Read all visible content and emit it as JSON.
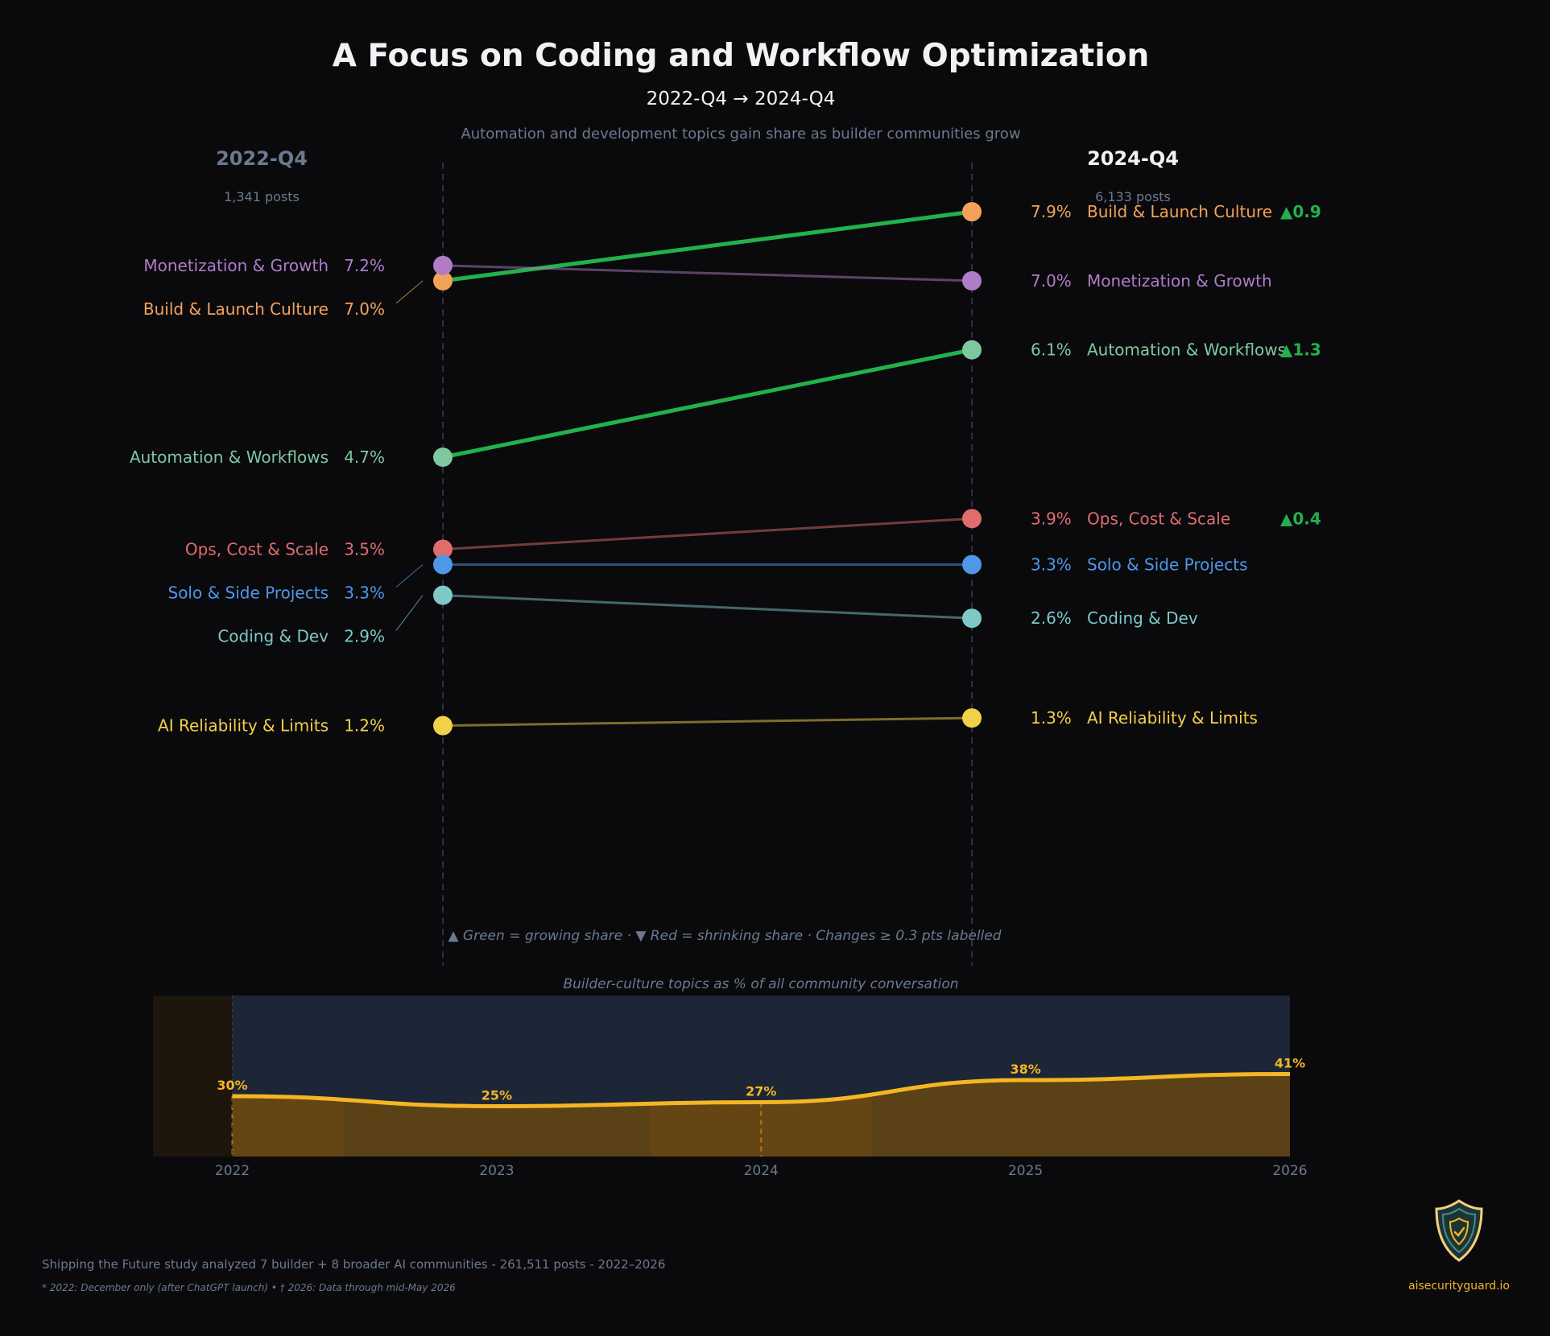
{
  "chart_data": [
    {
      "type": "slope",
      "title": "A Focus on Coding and Workflow Optimization",
      "subtitle": "2022-Q4  →  2024-Q4",
      "description": "Automation and development topics gain share as builder communities grow",
      "periods": [
        {
          "label": "2022-Q4",
          "posts": "1,341 posts"
        },
        {
          "label": "2024-Q4",
          "posts": "6,133 posts"
        }
      ],
      "unit": "%",
      "series": [
        {
          "name": "Build & Launch Culture",
          "color": "#f4a259",
          "start": 7.0,
          "end": 7.9,
          "delta_label": "▲0.9",
          "highlight": true
        },
        {
          "name": "Monetization & Growth",
          "color": "#b07cc6",
          "start": 7.2,
          "end": 7.0,
          "delta_label": "",
          "highlight": false
        },
        {
          "name": "Automation & Workflows",
          "color": "#7ec8a0",
          "start": 4.7,
          "end": 6.1,
          "delta_label": "▲1.3",
          "highlight": true
        },
        {
          "name": "Ops, Cost & Scale",
          "color": "#e06c6c",
          "start": 3.5,
          "end": 3.9,
          "delta_label": "▲0.4",
          "highlight": false
        },
        {
          "name": "Solo & Side Projects",
          "color": "#4f97e8",
          "start": 3.3,
          "end": 3.3,
          "delta_label": "",
          "highlight": false
        },
        {
          "name": "Coding & Dev",
          "color": "#7ec8c8",
          "start": 2.9,
          "end": 2.6,
          "delta_label": "",
          "highlight": false
        },
        {
          "name": "AI Reliability & Limits",
          "color": "#f2d049",
          "start": 1.2,
          "end": 1.3,
          "delta_label": "",
          "highlight": false
        }
      ],
      "growth_color": "#22b14c",
      "legend_note": "▲ Green = growing share  ·  ▼ Red = shrinking share  ·  Changes ≥ 0.3 pts labelled"
    },
    {
      "type": "area",
      "title": "Builder-culture topics as % of all community conversation",
      "x": [
        2022,
        2023,
        2024,
        2025,
        2026
      ],
      "values": [
        30,
        25,
        27,
        38,
        41
      ],
      "data_labels": [
        "30%",
        "25%",
        "27%",
        "38%",
        "41%"
      ],
      "xlim": [
        2021.7,
        2026
      ],
      "ylim": [
        0,
        80
      ],
      "line_color": "#f5b623"
    }
  ],
  "footer": {
    "study": "Shipping the Future study analyzed 7 builder + 8 broader AI communities - 261,511 posts - 2022–2026",
    "note": "* 2022: December only (after ChatGPT launch)  •  † 2026: Data through mid-May 2026"
  },
  "brand": {
    "text": "aisecurityguard.io",
    "icon": "shield-check-icon"
  }
}
